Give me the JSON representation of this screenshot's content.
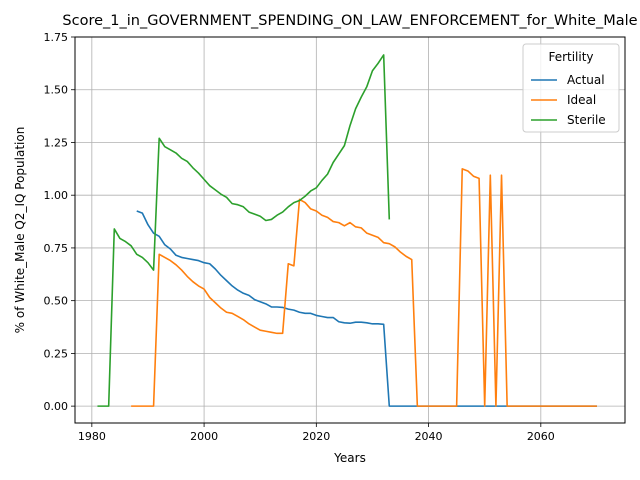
{
  "chart_data": {
    "type": "line",
    "title": "Score_1_in_GOVERNMENT_SPENDING_ON_LAW_ENFORCEMENT_for_White_Male",
    "xlabel": "Years",
    "ylabel": "% of White_Male Q2_IQ Population",
    "xlim": [
      1977,
      2075
    ],
    "ylim": [
      -0.08,
      1.75
    ],
    "xticks": [
      1980,
      2000,
      2020,
      2040,
      2060
    ],
    "xtick_labels": [
      "1980",
      "2000",
      "2020",
      "2040",
      "2060"
    ],
    "yticks": [
      0.0,
      0.25,
      0.5,
      0.75,
      1.0,
      1.25,
      1.5,
      1.75
    ],
    "ytick_labels": [
      "0.00",
      "0.25",
      "0.50",
      "0.75",
      "1.00",
      "1.25",
      "1.50",
      "1.75"
    ],
    "grid": true,
    "legend": {
      "title": "Fertility",
      "placement": "top-right"
    },
    "series": [
      {
        "name": "Actual",
        "color": "#1f77b4",
        "points": [
          [
            1988,
            0.925
          ],
          [
            1989,
            0.915
          ],
          [
            1990,
            0.86
          ],
          [
            1991,
            0.82
          ],
          [
            1992,
            0.805
          ],
          [
            1993,
            0.765
          ],
          [
            1994,
            0.745
          ],
          [
            1995,
            0.715
          ],
          [
            1996,
            0.705
          ],
          [
            1997,
            0.7
          ],
          [
            1998,
            0.695
          ],
          [
            1999,
            0.69
          ],
          [
            2000,
            0.68
          ],
          [
            2001,
            0.675
          ],
          [
            2002,
            0.65
          ],
          [
            2003,
            0.62
          ],
          [
            2004,
            0.595
          ],
          [
            2005,
            0.57
          ],
          [
            2006,
            0.55
          ],
          [
            2007,
            0.535
          ],
          [
            2008,
            0.525
          ],
          [
            2009,
            0.505
          ],
          [
            2010,
            0.495
          ],
          [
            2011,
            0.485
          ],
          [
            2012,
            0.47
          ],
          [
            2013,
            0.47
          ],
          [
            2014,
            0.468
          ],
          [
            2015,
            0.46
          ],
          [
            2016,
            0.455
          ],
          [
            2017,
            0.445
          ],
          [
            2018,
            0.44
          ],
          [
            2019,
            0.44
          ],
          [
            2020,
            0.43
          ],
          [
            2021,
            0.425
          ],
          [
            2022,
            0.42
          ],
          [
            2023,
            0.42
          ],
          [
            2024,
            0.4
          ],
          [
            2025,
            0.395
          ],
          [
            2026,
            0.393
          ],
          [
            2027,
            0.398
          ],
          [
            2028,
            0.398
          ],
          [
            2029,
            0.395
          ],
          [
            2030,
            0.39
          ],
          [
            2031,
            0.39
          ],
          [
            2032,
            0.388
          ],
          [
            2033,
            0.0
          ],
          [
            2034,
            0.0
          ],
          [
            2036,
            0.0
          ],
          [
            2038,
            0.0
          ],
          [
            2040,
            0.0
          ],
          [
            2045,
            0.0
          ],
          [
            2050,
            0.0
          ],
          [
            2055,
            0.0
          ],
          [
            2060,
            0.0
          ],
          [
            2065,
            0.0
          ],
          [
            2070,
            0.0
          ]
        ]
      },
      {
        "name": "Ideal",
        "color": "#ff7f0e",
        "points": [
          [
            1987,
            0.0
          ],
          [
            1989,
            0.0
          ],
          [
            1991,
            0.0
          ],
          [
            1992,
            0.72
          ],
          [
            1993,
            0.705
          ],
          [
            1994,
            0.69
          ],
          [
            1995,
            0.67
          ],
          [
            1996,
            0.645
          ],
          [
            1997,
            0.615
          ],
          [
            1998,
            0.59
          ],
          [
            1999,
            0.57
          ],
          [
            2000,
            0.555
          ],
          [
            2001,
            0.515
          ],
          [
            2002,
            0.49
          ],
          [
            2003,
            0.465
          ],
          [
            2004,
            0.445
          ],
          [
            2005,
            0.44
          ],
          [
            2006,
            0.425
          ],
          [
            2007,
            0.41
          ],
          [
            2008,
            0.39
          ],
          [
            2009,
            0.375
          ],
          [
            2010,
            0.36
          ],
          [
            2011,
            0.355
          ],
          [
            2012,
            0.35
          ],
          [
            2013,
            0.345
          ],
          [
            2014,
            0.345
          ],
          [
            2015,
            0.675
          ],
          [
            2016,
            0.665
          ],
          [
            2017,
            0.98
          ],
          [
            2018,
            0.965
          ],
          [
            2019,
            0.935
          ],
          [
            2020,
            0.925
          ],
          [
            2021,
            0.905
          ],
          [
            2022,
            0.895
          ],
          [
            2023,
            0.875
          ],
          [
            2024,
            0.87
          ],
          [
            2025,
            0.855
          ],
          [
            2026,
            0.87
          ],
          [
            2027,
            0.85
          ],
          [
            2028,
            0.845
          ],
          [
            2029,
            0.82
          ],
          [
            2030,
            0.81
          ],
          [
            2031,
            0.8
          ],
          [
            2032,
            0.775
          ],
          [
            2033,
            0.77
          ],
          [
            2034,
            0.755
          ],
          [
            2035,
            0.73
          ],
          [
            2036,
            0.71
          ],
          [
            2037,
            0.695
          ],
          [
            2038,
            0.0
          ],
          [
            2040,
            0.0
          ],
          [
            2042,
            0.0
          ],
          [
            2045,
            0.0
          ],
          [
            2046,
            1.125
          ],
          [
            2047,
            1.115
          ],
          [
            2048,
            1.09
          ],
          [
            2049,
            1.08
          ],
          [
            2050,
            0.0
          ],
          [
            2051,
            1.095
          ],
          [
            2052,
            0.0
          ],
          [
            2053,
            1.095
          ],
          [
            2054,
            0.0
          ],
          [
            2056,
            0.0
          ],
          [
            2060,
            0.0
          ],
          [
            2065,
            0.0
          ],
          [
            2070,
            0.0
          ]
        ]
      },
      {
        "name": "Sterile",
        "color": "#2ca02c",
        "points": [
          [
            1981,
            0.0
          ],
          [
            1983,
            0.0
          ],
          [
            1984,
            0.84
          ],
          [
            1985,
            0.795
          ],
          [
            1986,
            0.78
          ],
          [
            1987,
            0.76
          ],
          [
            1988,
            0.72
          ],
          [
            1989,
            0.705
          ],
          [
            1990,
            0.68
          ],
          [
            1991,
            0.645
          ],
          [
            1992,
            1.27
          ],
          [
            1993,
            1.23
          ],
          [
            1994,
            1.215
          ],
          [
            1995,
            1.2
          ],
          [
            1996,
            1.175
          ],
          [
            1997,
            1.16
          ],
          [
            1998,
            1.13
          ],
          [
            1999,
            1.105
          ],
          [
            2000,
            1.075
          ],
          [
            2001,
            1.045
          ],
          [
            2002,
            1.025
          ],
          [
            2003,
            1.005
          ],
          [
            2004,
            0.99
          ],
          [
            2005,
            0.96
          ],
          [
            2006,
            0.955
          ],
          [
            2007,
            0.945
          ],
          [
            2008,
            0.92
          ],
          [
            2009,
            0.91
          ],
          [
            2010,
            0.9
          ],
          [
            2011,
            0.88
          ],
          [
            2012,
            0.885
          ],
          [
            2013,
            0.905
          ],
          [
            2014,
            0.92
          ],
          [
            2015,
            0.945
          ],
          [
            2016,
            0.965
          ],
          [
            2017,
            0.975
          ],
          [
            2018,
            0.995
          ],
          [
            2019,
            1.02
          ],
          [
            2020,
            1.035
          ],
          [
            2021,
            1.07
          ],
          [
            2022,
            1.1
          ],
          [
            2023,
            1.155
          ],
          [
            2024,
            1.195
          ],
          [
            2025,
            1.235
          ],
          [
            2026,
            1.33
          ],
          [
            2027,
            1.41
          ],
          [
            2028,
            1.465
          ],
          [
            2029,
            1.515
          ],
          [
            2030,
            1.59
          ],
          [
            2031,
            1.625
          ],
          [
            2032,
            1.665
          ],
          [
            2033,
            0.885
          ]
        ]
      }
    ]
  }
}
